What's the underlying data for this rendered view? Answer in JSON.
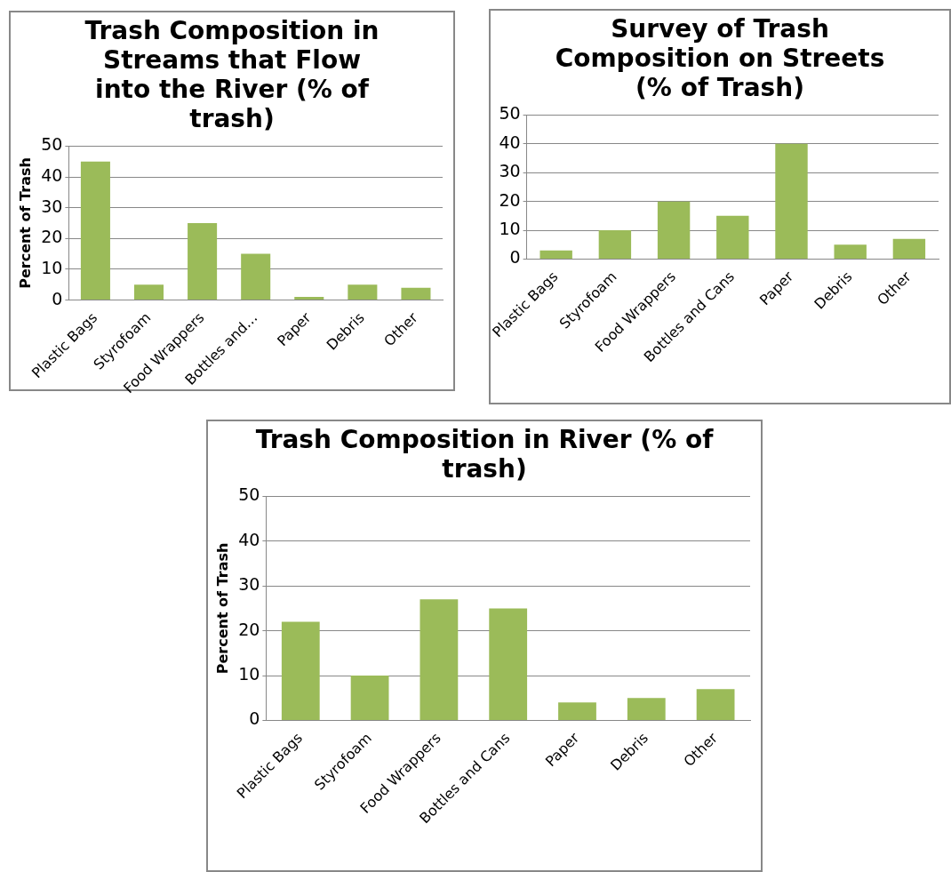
{
  "chart_data": [
    {
      "type": "bar",
      "title": "Trash Composition in Streams that Flow into the  River (% of trash)",
      "ylabel": "Percent of Trash",
      "categories": [
        "Plastic Bags",
        "Styrofoam",
        "Food Wrappers",
        "Bottles and…",
        "Paper",
        "Debris",
        "Other"
      ],
      "values": [
        45,
        5,
        25,
        15,
        1,
        5,
        4
      ],
      "color": "#9bbb59",
      "ylim": [
        0,
        50
      ],
      "yticks": [
        0,
        10,
        20,
        30,
        40,
        50
      ],
      "grid": "y",
      "legend": false
    },
    {
      "type": "bar",
      "title": "Survey of Trash Composition on Streets (% of Trash)",
      "categories": [
        "Plastic Bags",
        "Styrofoam",
        "Food Wrappers",
        "Bottles and Cans",
        "Paper",
        "Debris",
        "Other"
      ],
      "values": [
        3,
        10,
        20,
        15,
        40,
        5,
        7
      ],
      "color": "#9bbb59",
      "ylim": [
        0,
        50
      ],
      "yticks": [
        0,
        10,
        20,
        30,
        40,
        50
      ],
      "grid": "y",
      "legend": false
    },
    {
      "type": "bar",
      "title": "Trash Composition in  River (% of trash)",
      "ylabel": "Percent of Trash",
      "categories": [
        "Plastic Bags",
        "Styrofoam",
        "Food Wrappers",
        "Bottles and Cans",
        "Paper",
        "Debris",
        "Other"
      ],
      "values": [
        22,
        10,
        27,
        25,
        4,
        5,
        7
      ],
      "color": "#9bbb59",
      "ylim": [
        0,
        50
      ],
      "yticks": [
        0,
        10,
        20,
        30,
        40,
        50
      ],
      "grid": "y",
      "legend": false
    }
  ]
}
